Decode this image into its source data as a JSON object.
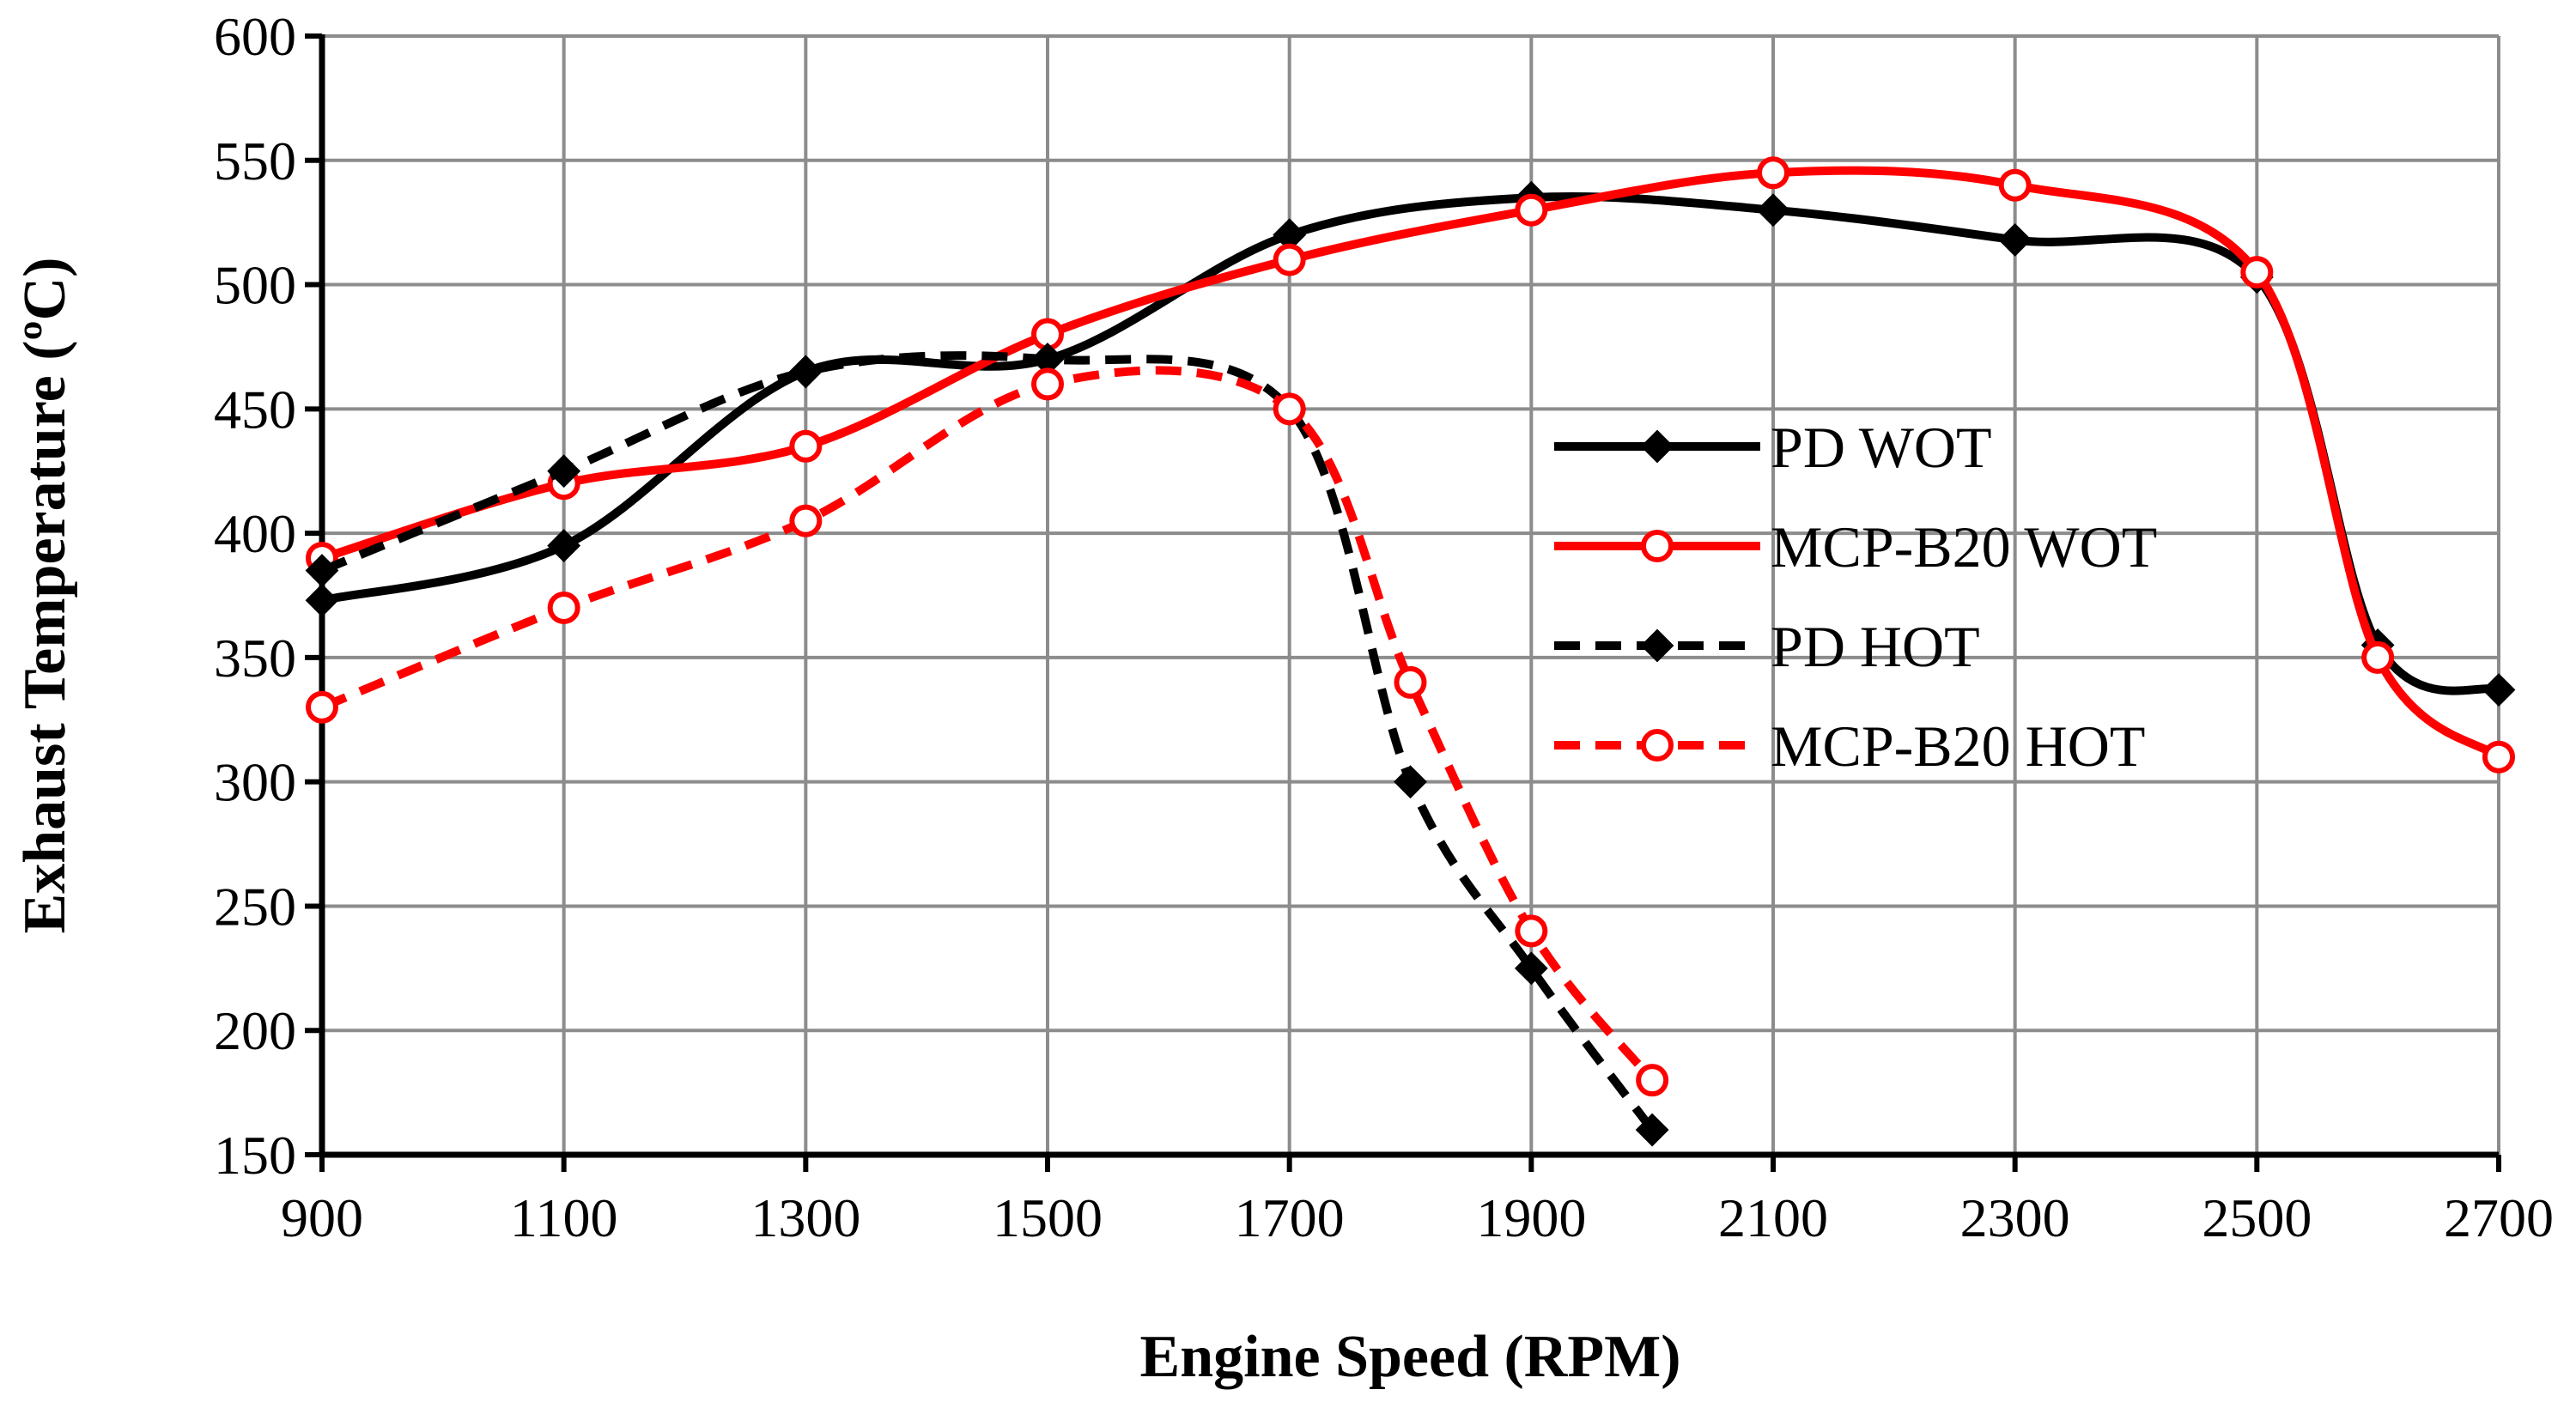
{
  "chart_data": {
    "type": "line",
    "title": "",
    "xlabel": "Engine Speed (RPM)",
    "ylabel": "Exhaust Temperature (ºC)",
    "xlim": [
      900,
      2700
    ],
    "ylim": [
      150,
      600
    ],
    "xticks": [
      900,
      1100,
      1300,
      1500,
      1700,
      1900,
      2100,
      2300,
      2500,
      2700
    ],
    "yticks": [
      150,
      200,
      250,
      300,
      350,
      400,
      450,
      500,
      550,
      600
    ],
    "grid": true,
    "legend_position": "center-right",
    "series": [
      {
        "name": "PD WOT",
        "color": "#000000",
        "dash": "solid",
        "marker": "diamond",
        "x": [
          900,
          1100,
          1300,
          1500,
          1700,
          1900,
          2100,
          2300,
          2500,
          2600,
          2700
        ],
        "y": [
          373,
          395,
          465,
          470,
          520,
          535,
          530,
          518,
          503,
          355,
          337
        ]
      },
      {
        "name": "MCP-B20 WOT",
        "color": "#ff0000",
        "dash": "solid",
        "marker": "circle-open",
        "x": [
          900,
          1100,
          1300,
          1500,
          1700,
          1900,
          2100,
          2300,
          2500,
          2600,
          2700
        ],
        "y": [
          390,
          420,
          435,
          480,
          510,
          530,
          545,
          540,
          505,
          350,
          310
        ]
      },
      {
        "name": "PD HOT",
        "color": "#000000",
        "dash": "dashed",
        "marker": "diamond",
        "x": [
          900,
          1100,
          1300,
          1500,
          1700,
          1800,
          1900,
          2000
        ],
        "y": [
          385,
          425,
          465,
          470,
          450,
          300,
          225,
          160
        ]
      },
      {
        "name": "MCP-B20 HOT",
        "color": "#ff0000",
        "dash": "dashed",
        "marker": "circle-open",
        "x": [
          900,
          1100,
          1300,
          1500,
          1700,
          1800,
          1900,
          2000
        ],
        "y": [
          330,
          370,
          405,
          460,
          450,
          340,
          240,
          180
        ]
      }
    ]
  }
}
